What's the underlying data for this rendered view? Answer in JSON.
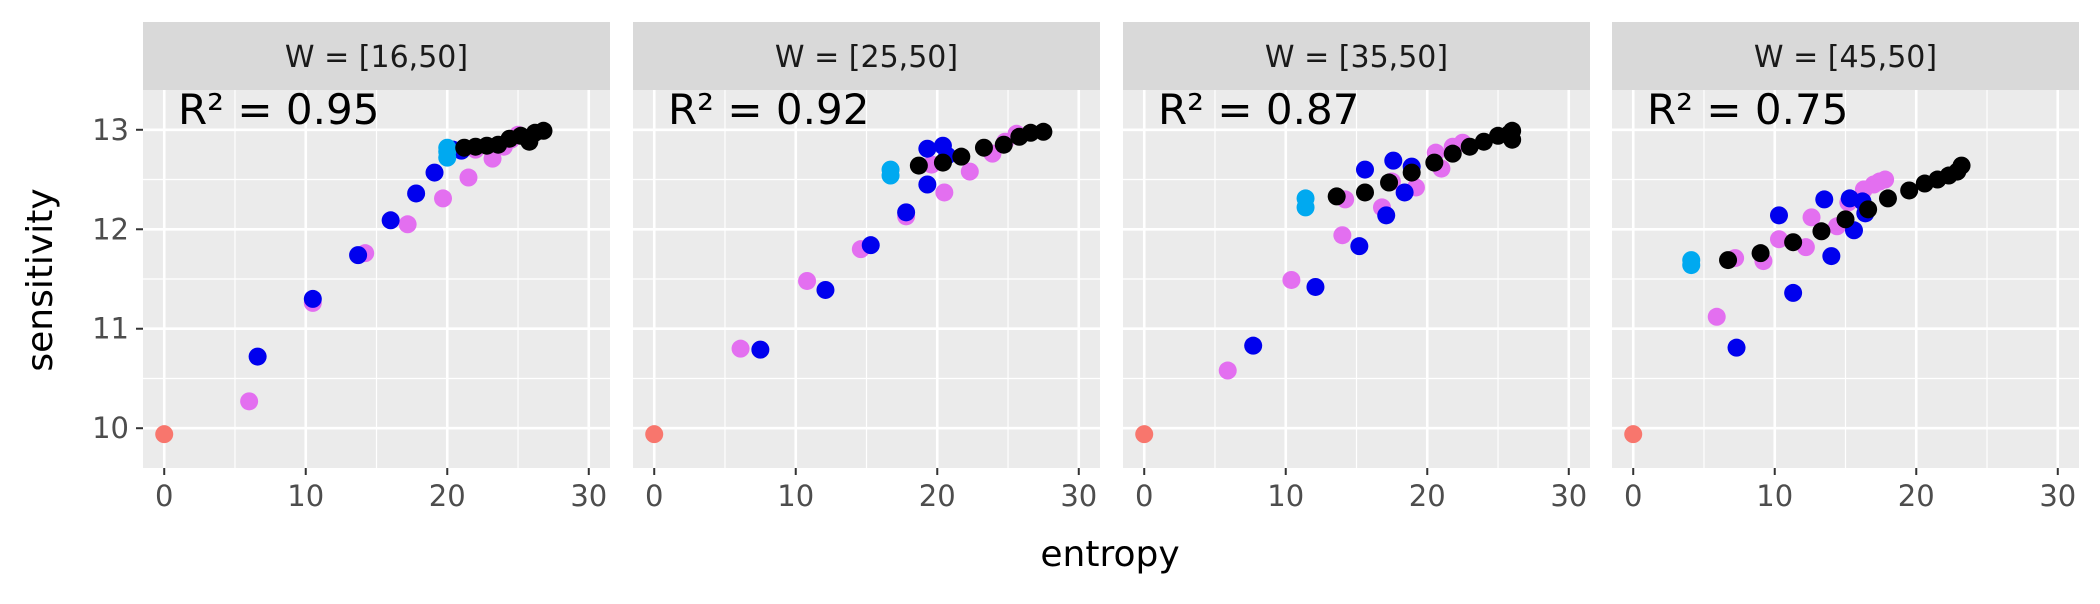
{
  "chart_data": {
    "type": "scatter",
    "xlabel": "entropy",
    "ylabel": "sensitivity",
    "xlim": [
      -1.5,
      31.5
    ],
    "ylim": [
      9.6,
      13.4
    ],
    "x_ticks": [
      0,
      10,
      20,
      30
    ],
    "y_ticks": [
      10,
      11,
      12,
      13
    ],
    "grid": true,
    "legend": "none",
    "colors": {
      "red": "#f8766d",
      "magenta": "#e36ff0",
      "blue": "#0000ee",
      "lightblue": "#00a9f0",
      "black": "#000000"
    },
    "panels": [
      {
        "strip": "W = [16,50]",
        "annotation": "R² = 0.95",
        "points": [
          {
            "x": 0,
            "y": 9.94,
            "group": "red"
          },
          {
            "x": 6.0,
            "y": 10.27,
            "group": "magenta"
          },
          {
            "x": 10.5,
            "y": 11.26,
            "group": "magenta"
          },
          {
            "x": 14.2,
            "y": 11.76,
            "group": "magenta"
          },
          {
            "x": 17.2,
            "y": 12.05,
            "group": "magenta"
          },
          {
            "x": 19.7,
            "y": 12.31,
            "group": "magenta"
          },
          {
            "x": 21.5,
            "y": 12.52,
            "group": "magenta"
          },
          {
            "x": 23.2,
            "y": 12.71,
            "group": "magenta"
          },
          {
            "x": 24.0,
            "y": 12.83,
            "group": "magenta"
          },
          {
            "x": 24.5,
            "y": 12.9,
            "group": "magenta"
          },
          {
            "x": 25.0,
            "y": 12.95,
            "group": "magenta"
          },
          {
            "x": 22.0,
            "y": 12.8,
            "group": "magenta"
          },
          {
            "x": 6.6,
            "y": 10.72,
            "group": "blue"
          },
          {
            "x": 10.5,
            "y": 11.3,
            "group": "blue"
          },
          {
            "x": 13.7,
            "y": 11.74,
            "group": "blue"
          },
          {
            "x": 16.0,
            "y": 12.09,
            "group": "blue"
          },
          {
            "x": 17.8,
            "y": 12.36,
            "group": "blue"
          },
          {
            "x": 19.1,
            "y": 12.57,
            "group": "blue"
          },
          {
            "x": 20.4,
            "y": 12.8,
            "group": "blue"
          },
          {
            "x": 21.0,
            "y": 12.79,
            "group": "blue"
          },
          {
            "x": 20.0,
            "y": 12.72,
            "group": "lightblue"
          },
          {
            "x": 20.0,
            "y": 12.78,
            "group": "lightblue"
          },
          {
            "x": 20.0,
            "y": 12.82,
            "group": "lightblue"
          },
          {
            "x": 21.2,
            "y": 12.82,
            "group": "black"
          },
          {
            "x": 22.0,
            "y": 12.83,
            "group": "black"
          },
          {
            "x": 22.8,
            "y": 12.84,
            "group": "black"
          },
          {
            "x": 23.6,
            "y": 12.85,
            "group": "black"
          },
          {
            "x": 24.4,
            "y": 12.91,
            "group": "black"
          },
          {
            "x": 25.2,
            "y": 12.94,
            "group": "black"
          },
          {
            "x": 25.8,
            "y": 12.88,
            "group": "black"
          },
          {
            "x": 26.2,
            "y": 12.97,
            "group": "black"
          },
          {
            "x": 26.8,
            "y": 12.99,
            "group": "black"
          }
        ]
      },
      {
        "strip": "W = [25,50]",
        "annotation": "R² = 0.92",
        "points": [
          {
            "x": 0,
            "y": 9.94,
            "group": "red"
          },
          {
            "x": 6.1,
            "y": 10.8,
            "group": "magenta"
          },
          {
            "x": 10.8,
            "y": 11.48,
            "group": "magenta"
          },
          {
            "x": 14.6,
            "y": 11.8,
            "group": "magenta"
          },
          {
            "x": 17.8,
            "y": 12.13,
            "group": "magenta"
          },
          {
            "x": 20.5,
            "y": 12.37,
            "group": "magenta"
          },
          {
            "x": 22.3,
            "y": 12.58,
            "group": "magenta"
          },
          {
            "x": 23.9,
            "y": 12.76,
            "group": "magenta"
          },
          {
            "x": 24.8,
            "y": 12.88,
            "group": "magenta"
          },
          {
            "x": 25.6,
            "y": 12.96,
            "group": "magenta"
          },
          {
            "x": 19.6,
            "y": 12.65,
            "group": "magenta"
          },
          {
            "x": 7.5,
            "y": 10.79,
            "group": "blue"
          },
          {
            "x": 12.1,
            "y": 11.39,
            "group": "blue"
          },
          {
            "x": 15.3,
            "y": 11.84,
            "group": "blue"
          },
          {
            "x": 17.8,
            "y": 12.17,
            "group": "blue"
          },
          {
            "x": 19.3,
            "y": 12.45,
            "group": "blue"
          },
          {
            "x": 19.3,
            "y": 12.81,
            "group": "blue"
          },
          {
            "x": 20.4,
            "y": 12.84,
            "group": "blue"
          },
          {
            "x": 20.7,
            "y": 12.74,
            "group": "blue"
          },
          {
            "x": 16.7,
            "y": 12.54,
            "group": "lightblue"
          },
          {
            "x": 16.7,
            "y": 12.6,
            "group": "lightblue"
          },
          {
            "x": 18.7,
            "y": 12.64,
            "group": "black"
          },
          {
            "x": 20.4,
            "y": 12.67,
            "group": "black"
          },
          {
            "x": 21.7,
            "y": 12.73,
            "group": "black"
          },
          {
            "x": 23.3,
            "y": 12.82,
            "group": "black"
          },
          {
            "x": 24.7,
            "y": 12.85,
            "group": "black"
          },
          {
            "x": 25.8,
            "y": 12.93,
            "group": "black"
          },
          {
            "x": 26.6,
            "y": 12.97,
            "group": "black"
          },
          {
            "x": 27.5,
            "y": 12.98,
            "group": "black"
          }
        ]
      },
      {
        "strip": "W = [35,50]",
        "annotation": "R² = 0.87",
        "points": [
          {
            "x": 0,
            "y": 9.94,
            "group": "red"
          },
          {
            "x": 5.9,
            "y": 10.58,
            "group": "magenta"
          },
          {
            "x": 10.4,
            "y": 11.49,
            "group": "magenta"
          },
          {
            "x": 14.0,
            "y": 11.94,
            "group": "magenta"
          },
          {
            "x": 14.2,
            "y": 12.3,
            "group": "magenta"
          },
          {
            "x": 16.8,
            "y": 12.22,
            "group": "magenta"
          },
          {
            "x": 17.5,
            "y": 12.48,
            "group": "magenta"
          },
          {
            "x": 19.2,
            "y": 12.42,
            "group": "magenta"
          },
          {
            "x": 21.0,
            "y": 12.61,
            "group": "magenta"
          },
          {
            "x": 20.6,
            "y": 12.77,
            "group": "magenta"
          },
          {
            "x": 21.8,
            "y": 12.83,
            "group": "magenta"
          },
          {
            "x": 22.5,
            "y": 12.87,
            "group": "magenta"
          },
          {
            "x": 7.7,
            "y": 10.83,
            "group": "blue"
          },
          {
            "x": 12.1,
            "y": 11.42,
            "group": "blue"
          },
          {
            "x": 15.2,
            "y": 11.83,
            "group": "blue"
          },
          {
            "x": 17.1,
            "y": 12.14,
            "group": "blue"
          },
          {
            "x": 18.4,
            "y": 12.37,
            "group": "blue"
          },
          {
            "x": 15.6,
            "y": 12.6,
            "group": "blue"
          },
          {
            "x": 17.6,
            "y": 12.69,
            "group": "blue"
          },
          {
            "x": 18.9,
            "y": 12.63,
            "group": "blue"
          },
          {
            "x": 11.4,
            "y": 12.22,
            "group": "lightblue"
          },
          {
            "x": 11.4,
            "y": 12.31,
            "group": "lightblue"
          },
          {
            "x": 13.6,
            "y": 12.33,
            "group": "black"
          },
          {
            "x": 15.6,
            "y": 12.37,
            "group": "black"
          },
          {
            "x": 17.3,
            "y": 12.47,
            "group": "black"
          },
          {
            "x": 18.9,
            "y": 12.57,
            "group": "black"
          },
          {
            "x": 20.5,
            "y": 12.67,
            "group": "black"
          },
          {
            "x": 21.8,
            "y": 12.76,
            "group": "black"
          },
          {
            "x": 23.0,
            "y": 12.83,
            "group": "black"
          },
          {
            "x": 24.0,
            "y": 12.88,
            "group": "black"
          },
          {
            "x": 25.0,
            "y": 12.94,
            "group": "black"
          },
          {
            "x": 25.8,
            "y": 12.96,
            "group": "black"
          },
          {
            "x": 26.0,
            "y": 12.9,
            "group": "black"
          },
          {
            "x": 26.0,
            "y": 12.99,
            "group": "black"
          }
        ]
      },
      {
        "strip": "W = [45,50]",
        "annotation": "R² = 0.75",
        "points": [
          {
            "x": 0,
            "y": 9.94,
            "group": "red"
          },
          {
            "x": 5.9,
            "y": 11.12,
            "group": "magenta"
          },
          {
            "x": 7.2,
            "y": 11.71,
            "group": "magenta"
          },
          {
            "x": 9.2,
            "y": 11.68,
            "group": "magenta"
          },
          {
            "x": 10.3,
            "y": 11.9,
            "group": "magenta"
          },
          {
            "x": 12.2,
            "y": 11.82,
            "group": "magenta"
          },
          {
            "x": 12.6,
            "y": 12.12,
            "group": "magenta"
          },
          {
            "x": 14.4,
            "y": 12.03,
            "group": "magenta"
          },
          {
            "x": 15.2,
            "y": 12.27,
            "group": "magenta"
          },
          {
            "x": 16.3,
            "y": 12.4,
            "group": "magenta"
          },
          {
            "x": 17.0,
            "y": 12.45,
            "group": "magenta"
          },
          {
            "x": 17.4,
            "y": 12.48,
            "group": "magenta"
          },
          {
            "x": 17.8,
            "y": 12.5,
            "group": "magenta"
          },
          {
            "x": 7.3,
            "y": 10.81,
            "group": "blue"
          },
          {
            "x": 11.3,
            "y": 11.36,
            "group": "blue"
          },
          {
            "x": 14.0,
            "y": 11.73,
            "group": "blue"
          },
          {
            "x": 15.6,
            "y": 11.99,
            "group": "blue"
          },
          {
            "x": 16.4,
            "y": 12.16,
            "group": "blue"
          },
          {
            "x": 10.3,
            "y": 12.14,
            "group": "blue"
          },
          {
            "x": 13.5,
            "y": 12.3,
            "group": "blue"
          },
          {
            "x": 15.3,
            "y": 12.31,
            "group": "blue"
          },
          {
            "x": 16.2,
            "y": 12.28,
            "group": "blue"
          },
          {
            "x": 4.1,
            "y": 11.64,
            "group": "lightblue"
          },
          {
            "x": 4.1,
            "y": 11.69,
            "group": "lightblue"
          },
          {
            "x": 6.7,
            "y": 11.69,
            "group": "black"
          },
          {
            "x": 9.0,
            "y": 11.76,
            "group": "black"
          },
          {
            "x": 11.3,
            "y": 11.87,
            "group": "black"
          },
          {
            "x": 13.3,
            "y": 11.98,
            "group": "black"
          },
          {
            "x": 15.0,
            "y": 12.1,
            "group": "black"
          },
          {
            "x": 16.6,
            "y": 12.2,
            "group": "black"
          },
          {
            "x": 18.0,
            "y": 12.31,
            "group": "black"
          },
          {
            "x": 19.5,
            "y": 12.39,
            "group": "black"
          },
          {
            "x": 20.6,
            "y": 12.46,
            "group": "black"
          },
          {
            "x": 21.5,
            "y": 12.5,
            "group": "black"
          },
          {
            "x": 22.3,
            "y": 12.54,
            "group": "black"
          },
          {
            "x": 22.9,
            "y": 12.58,
            "group": "black"
          },
          {
            "x": 23.2,
            "y": 12.64,
            "group": "black"
          }
        ]
      }
    ]
  }
}
